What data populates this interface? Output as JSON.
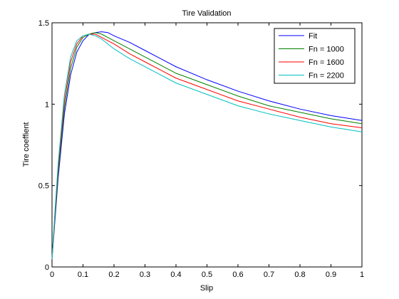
{
  "chart_data": {
    "type": "line",
    "title": "Tire Validation",
    "xlabel": "Slip",
    "ylabel": "Tire coeffient",
    "xlim": [
      0,
      1
    ],
    "ylim": [
      0,
      1.5
    ],
    "xticks": [
      0,
      0.1,
      0.2,
      0.3,
      0.4,
      0.5,
      0.6,
      0.7,
      0.8,
      0.9,
      1
    ],
    "xtick_labels": [
      "0",
      "0.1",
      "0.2",
      "0.3",
      "0.4",
      "0.5",
      "0.6",
      "0.7",
      "0.8",
      "0.9",
      "1"
    ],
    "yticks": [
      0,
      0.5,
      1,
      1.5
    ],
    "ytick_labels": [
      "0",
      "0.5",
      "1",
      "1.5"
    ],
    "grid": false,
    "legend_position": "top-right",
    "series": [
      {
        "name": "Fit",
        "color": "#0000ff",
        "x": [
          0,
          0.01,
          0.02,
          0.04,
          0.06,
          0.08,
          0.1,
          0.12,
          0.14,
          0.16,
          0.18,
          0.2,
          0.25,
          0.3,
          0.35,
          0.4,
          0.5,
          0.6,
          0.7,
          0.8,
          0.9,
          1.0
        ],
        "y": [
          0.05,
          0.3,
          0.55,
          0.94,
          1.18,
          1.32,
          1.39,
          1.43,
          1.44,
          1.445,
          1.44,
          1.42,
          1.38,
          1.33,
          1.28,
          1.23,
          1.15,
          1.08,
          1.02,
          0.97,
          0.93,
          0.9
        ]
      },
      {
        "name": "Fn = 1000",
        "color": "#008000",
        "x": [
          0,
          0.01,
          0.02,
          0.04,
          0.06,
          0.08,
          0.1,
          0.12,
          0.14,
          0.16,
          0.18,
          0.2,
          0.25,
          0.3,
          0.35,
          0.4,
          0.5,
          0.6,
          0.7,
          0.8,
          0.9,
          1.0
        ],
        "y": [
          0.05,
          0.32,
          0.58,
          0.98,
          1.22,
          1.35,
          1.41,
          1.43,
          1.44,
          1.43,
          1.41,
          1.39,
          1.34,
          1.29,
          1.24,
          1.19,
          1.12,
          1.05,
          0.99,
          0.95,
          0.91,
          0.88
        ]
      },
      {
        "name": "Fn = 1600",
        "color": "#ff0000",
        "x": [
          0,
          0.01,
          0.02,
          0.04,
          0.06,
          0.08,
          0.1,
          0.12,
          0.14,
          0.16,
          0.18,
          0.2,
          0.25,
          0.3,
          0.35,
          0.4,
          0.5,
          0.6,
          0.7,
          0.8,
          0.9,
          1.0
        ],
        "y": [
          0.05,
          0.34,
          0.61,
          1.02,
          1.26,
          1.37,
          1.42,
          1.43,
          1.43,
          1.41,
          1.39,
          1.37,
          1.31,
          1.26,
          1.21,
          1.16,
          1.09,
          1.02,
          0.97,
          0.92,
          0.88,
          0.855
        ]
      },
      {
        "name": "Fn = 2200",
        "color": "#00bfbf",
        "x": [
          0,
          0.01,
          0.02,
          0.04,
          0.06,
          0.08,
          0.1,
          0.12,
          0.14,
          0.16,
          0.18,
          0.2,
          0.25,
          0.3,
          0.35,
          0.4,
          0.5,
          0.6,
          0.7,
          0.8,
          0.9,
          1.0
        ],
        "y": [
          0.05,
          0.36,
          0.64,
          1.06,
          1.29,
          1.39,
          1.42,
          1.43,
          1.42,
          1.4,
          1.37,
          1.34,
          1.28,
          1.23,
          1.18,
          1.13,
          1.06,
          0.99,
          0.94,
          0.9,
          0.86,
          0.83
        ]
      }
    ]
  }
}
